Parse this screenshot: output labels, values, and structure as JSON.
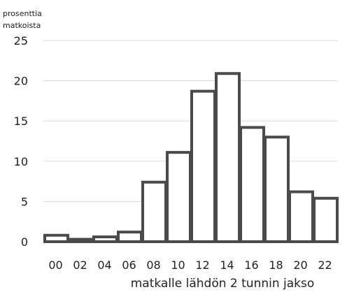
{
  "chart_data": {
    "type": "bar",
    "ylabel_lines": [
      "prosenttia",
      "matkoista"
    ],
    "xlabel": "matkalle lähdön 2 tunnin jakso",
    "categories": [
      "00",
      "02",
      "04",
      "06",
      "08",
      "10",
      "12",
      "14",
      "16",
      "18",
      "20",
      "22"
    ],
    "values": [
      0.8,
      0.3,
      0.6,
      1.2,
      7.4,
      11.1,
      18.7,
      20.9,
      14.2,
      13.0,
      6.2,
      5.4
    ],
    "yticks": [
      0,
      5,
      10,
      15,
      20,
      25
    ],
    "ylim": [
      0,
      25
    ],
    "grid": true,
    "colors": {
      "bar_fill": "#ffffff",
      "bar_stroke": "#4a4a4a",
      "grid": "#d9d9d9",
      "text": "#222222"
    }
  }
}
